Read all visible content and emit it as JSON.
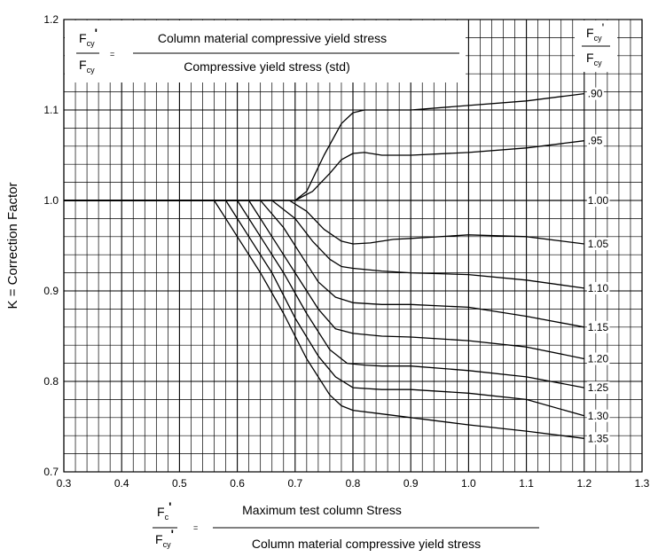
{
  "chart_data": {
    "type": "line",
    "title": "",
    "xlabel": "",
    "ylabel": "K = Correction Factor",
    "xlim": [
      0.3,
      1.3
    ],
    "ylim": [
      0.7,
      1.2
    ],
    "x_ticks": [
      "0.3",
      "0.4",
      "0.5",
      "0.6",
      "0.7",
      "0.8",
      "0.9",
      "1.0",
      "1.1",
      "1.2",
      "1.3"
    ],
    "y_ticks": [
      "0.7",
      "0.8",
      "0.9",
      "1.0",
      "1.1",
      "1.2"
    ],
    "grid": true,
    "ratio_header": {
      "numerator": "F",
      "numerator_sub": "cy",
      "numerator_mark": "'",
      "denominator": "F",
      "denominator_sub": "cy"
    },
    "definition_top": {
      "lhs_num": "F",
      "lhs_num_sub": "cy",
      "lhs_num_mark": "'",
      "lhs_den": "F",
      "lhs_den_sub": "cy",
      "equals": "=",
      "rhs_num": "Column material compressive yield stress",
      "rhs_den": "Compressive yield stress (std)"
    },
    "definition_bottom": {
      "lhs_num": "F",
      "lhs_num_sub": "c",
      "lhs_num_mark": "'",
      "lhs_den": "F",
      "lhs_den_sub": "cy",
      "lhs_den_mark": "'",
      "equals": "=",
      "rhs_num": "Maximum test column Stress",
      "rhs_den": "Column material compressive yield stress"
    },
    "series": [
      {
        "name": ".90",
        "x": [
          0.3,
          0.7,
          0.72,
          0.75,
          0.78,
          0.8,
          0.82,
          0.85,
          0.9,
          1.0,
          1.1,
          1.2
        ],
        "y": [
          1.0,
          1.0,
          1.01,
          1.05,
          1.085,
          1.097,
          1.1,
          1.1,
          1.1,
          1.105,
          1.11,
          1.118
        ]
      },
      {
        "name": ".95",
        "x": [
          0.3,
          0.7,
          0.73,
          0.76,
          0.78,
          0.8,
          0.82,
          0.85,
          0.9,
          1.0,
          1.1,
          1.2
        ],
        "y": [
          1.0,
          1.0,
          1.01,
          1.03,
          1.045,
          1.052,
          1.053,
          1.05,
          1.05,
          1.053,
          1.058,
          1.066
        ]
      },
      {
        "name": "1.00",
        "x": [
          0.3,
          1.2
        ],
        "y": [
          1.0,
          1.0
        ]
      },
      {
        "name": "1.05",
        "x": [
          0.3,
          0.69,
          0.72,
          0.75,
          0.78,
          0.8,
          0.83,
          0.87,
          0.9,
          1.0,
          1.1,
          1.2
        ],
        "y": [
          1.0,
          1.0,
          0.988,
          0.968,
          0.955,
          0.952,
          0.953,
          0.957,
          0.958,
          0.962,
          0.96,
          0.952
        ]
      },
      {
        "name": "1.10",
        "x": [
          0.3,
          0.66,
          0.7,
          0.73,
          0.76,
          0.78,
          0.8,
          0.85,
          0.9,
          1.0,
          1.1,
          1.2
        ],
        "y": [
          1.0,
          1.0,
          0.98,
          0.955,
          0.935,
          0.927,
          0.925,
          0.922,
          0.92,
          0.918,
          0.912,
          0.903
        ]
      },
      {
        "name": "1.15",
        "x": [
          0.3,
          0.64,
          0.68,
          0.71,
          0.74,
          0.77,
          0.8,
          0.85,
          0.9,
          1.0,
          1.1,
          1.2
        ],
        "y": [
          1.0,
          1.0,
          0.97,
          0.94,
          0.91,
          0.893,
          0.887,
          0.885,
          0.885,
          0.882,
          0.872,
          0.86
        ]
      },
      {
        "name": "1.20",
        "x": [
          0.3,
          0.62,
          0.66,
          0.7,
          0.74,
          0.77,
          0.8,
          0.85,
          0.9,
          1.0,
          1.1,
          1.2
        ],
        "y": [
          1.0,
          1.0,
          0.96,
          0.92,
          0.88,
          0.858,
          0.853,
          0.85,
          0.849,
          0.845,
          0.838,
          0.825
        ]
      },
      {
        "name": "1.25",
        "x": [
          0.3,
          0.6,
          0.64,
          0.68,
          0.72,
          0.76,
          0.79,
          0.82,
          0.85,
          0.9,
          1.0,
          1.1,
          1.2
        ],
        "y": [
          1.0,
          1.0,
          0.96,
          0.92,
          0.875,
          0.835,
          0.82,
          0.818,
          0.817,
          0.817,
          0.812,
          0.805,
          0.793
        ]
      },
      {
        "name": "1.30",
        "x": [
          0.3,
          0.58,
          0.62,
          0.66,
          0.7,
          0.74,
          0.77,
          0.8,
          0.85,
          0.9,
          1.0,
          1.1,
          1.2
        ],
        "y": [
          1.0,
          1.0,
          0.96,
          0.92,
          0.87,
          0.828,
          0.805,
          0.793,
          0.791,
          0.791,
          0.787,
          0.78,
          0.762
        ]
      },
      {
        "name": "1.35",
        "x": [
          0.3,
          0.56,
          0.6,
          0.64,
          0.68,
          0.72,
          0.76,
          0.78,
          0.8,
          0.85,
          0.9,
          1.0,
          1.1,
          1.2
        ],
        "y": [
          1.0,
          1.0,
          0.96,
          0.92,
          0.875,
          0.825,
          0.785,
          0.773,
          0.768,
          0.764,
          0.76,
          0.752,
          0.745,
          0.737
        ]
      }
    ]
  }
}
